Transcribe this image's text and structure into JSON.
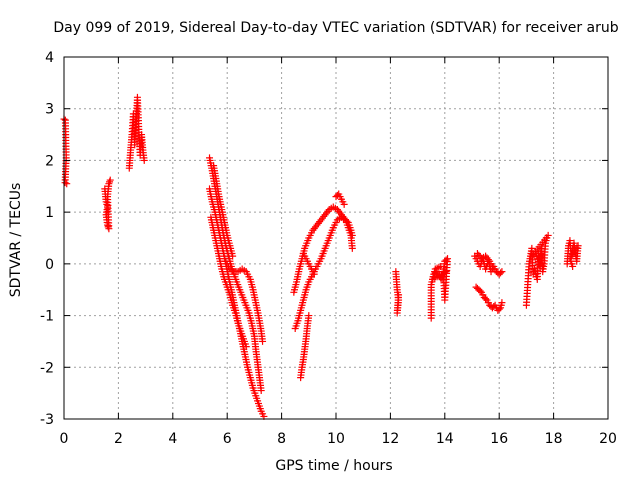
{
  "colors": {
    "series": "#ff0000",
    "grid": "#a0a0a0",
    "axis": "#000000",
    "background": "#ffffff"
  },
  "chart_data": {
    "type": "scatter",
    "title": "Day 099 of 2019, Sidereal Day-to-day VTEC variation (SDTVAR) for receiver arub",
    "xlabel": "GPS time / hours",
    "ylabel": "SDTVAR / TECUs",
    "xlim": [
      0,
      20
    ],
    "ylim": [
      -3,
      4
    ],
    "xticks": [
      "0",
      "2",
      "4",
      "6",
      "8",
      "10",
      "12",
      "14",
      "16",
      "18",
      "20"
    ],
    "yticks": [
      "-3",
      "-2",
      "-1",
      "0",
      "1",
      "2",
      "3",
      "4"
    ],
    "grid": true,
    "marker": "+",
    "series": [
      {
        "name": "SDTVAR",
        "segments": [
          [
            [
              0.0,
              2.8
            ],
            [
              0.05,
              2.78
            ],
            [
              0.08,
              2.05
            ],
            [
              0.04,
              1.57
            ],
            [
              0.1,
              1.55
            ]
          ],
          [
            [
              1.5,
              1.45
            ],
            [
              1.55,
              1.2
            ],
            [
              1.6,
              1.1
            ],
            [
              1.55,
              0.95
            ],
            [
              1.6,
              0.75
            ],
            [
              1.65,
              0.68
            ],
            [
              1.6,
              1.3
            ],
            [
              1.65,
              1.55
            ],
            [
              1.7,
              1.62
            ]
          ],
          [
            [
              2.4,
              1.85
            ],
            [
              2.45,
              2.2
            ],
            [
              2.5,
              2.5
            ],
            [
              2.55,
              2.9
            ],
            [
              2.6,
              2.3
            ],
            [
              2.65,
              2.75
            ],
            [
              2.7,
              3.22
            ],
            [
              2.75,
              2.6
            ],
            [
              2.8,
              2.1
            ],
            [
              2.85,
              2.5
            ],
            [
              2.9,
              2.2
            ],
            [
              2.95,
              2.0
            ]
          ],
          [
            [
              5.35,
              2.05
            ],
            [
              5.45,
              1.8
            ],
            [
              5.55,
              1.5
            ],
            [
              5.65,
              1.2
            ],
            [
              5.75,
              0.9
            ],
            [
              5.85,
              0.6
            ],
            [
              5.95,
              0.35
            ],
            [
              6.05,
              0.15
            ],
            [
              6.15,
              -0.05
            ],
            [
              6.25,
              -0.2
            ],
            [
              6.35,
              -0.35
            ],
            [
              6.5,
              -0.55
            ],
            [
              6.65,
              -0.75
            ],
            [
              6.8,
              -0.95
            ],
            [
              6.9,
              -1.15
            ],
            [
              7.0,
              -1.4
            ],
            [
              7.05,
              -1.65
            ],
            [
              7.1,
              -1.85
            ],
            [
              7.15,
              -2.05
            ],
            [
              7.2,
              -2.25
            ],
            [
              7.25,
              -2.45
            ]
          ],
          [
            [
              5.35,
              1.45
            ],
            [
              5.45,
              1.2
            ],
            [
              5.55,
              1.0
            ],
            [
              5.65,
              0.75
            ],
            [
              5.75,
              0.5
            ],
            [
              5.85,
              0.25
            ],
            [
              5.95,
              0.0
            ],
            [
              6.05,
              -0.25
            ],
            [
              6.15,
              -0.5
            ],
            [
              6.25,
              -0.75
            ],
            [
              6.35,
              -1.0
            ],
            [
              6.45,
              -1.25
            ],
            [
              6.55,
              -1.5
            ],
            [
              6.65,
              -1.75
            ],
            [
              6.75,
              -2.0
            ],
            [
              6.85,
              -2.2
            ],
            [
              6.95,
              -2.4
            ],
            [
              7.05,
              -2.55
            ],
            [
              7.15,
              -2.7
            ],
            [
              7.25,
              -2.85
            ],
            [
              7.35,
              -2.95
            ]
          ],
          [
            [
              5.4,
              0.9
            ],
            [
              5.5,
              0.65
            ],
            [
              5.6,
              0.4
            ],
            [
              5.7,
              0.15
            ],
            [
              5.8,
              -0.1
            ],
            [
              5.9,
              -0.3
            ],
            [
              6.0,
              -0.45
            ],
            [
              6.1,
              -0.6
            ],
            [
              6.2,
              -0.8
            ],
            [
              6.3,
              -0.95
            ],
            [
              6.4,
              -1.15
            ],
            [
              6.5,
              -1.3
            ],
            [
              6.6,
              -1.45
            ],
            [
              6.7,
              -1.6
            ]
          ],
          [
            [
              5.5,
              1.9
            ],
            [
              5.6,
              1.6
            ],
            [
              5.7,
              1.3
            ],
            [
              5.8,
              1.05
            ],
            [
              5.9,
              0.8
            ],
            [
              6.0,
              0.55
            ],
            [
              6.1,
              0.35
            ],
            [
              6.2,
              0.15
            ]
          ],
          [
            [
              5.95,
              0.05
            ],
            [
              6.1,
              -0.1
            ],
            [
              6.25,
              -0.15
            ],
            [
              6.4,
              -0.15
            ],
            [
              6.55,
              -0.1
            ],
            [
              6.7,
              -0.15
            ],
            [
              6.85,
              -0.3
            ],
            [
              6.95,
              -0.5
            ],
            [
              7.05,
              -0.75
            ],
            [
              7.15,
              -1.0
            ],
            [
              7.25,
              -1.3
            ],
            [
              7.3,
              -1.5
            ]
          ],
          [
            [
              8.5,
              -1.25
            ],
            [
              8.6,
              -1.1
            ],
            [
              8.7,
              -0.9
            ],
            [
              8.8,
              -0.7
            ],
            [
              8.9,
              -0.5
            ],
            [
              9.0,
              -0.35
            ],
            [
              9.15,
              -0.2
            ],
            [
              9.3,
              -0.05
            ],
            [
              9.45,
              0.1
            ],
            [
              9.6,
              0.3
            ],
            [
              9.75,
              0.5
            ],
            [
              9.9,
              0.7
            ],
            [
              10.05,
              0.85
            ],
            [
              10.2,
              0.9
            ],
            [
              10.35,
              0.85
            ],
            [
              10.45,
              0.8
            ],
            [
              10.55,
              0.65
            ],
            [
              10.6,
              0.55
            ]
          ],
          [
            [
              8.45,
              -0.55
            ],
            [
              8.55,
              -0.35
            ],
            [
              8.65,
              -0.1
            ],
            [
              8.75,
              0.1
            ],
            [
              8.85,
              0.3
            ],
            [
              9.0,
              0.5
            ],
            [
              9.15,
              0.65
            ],
            [
              9.3,
              0.75
            ],
            [
              9.45,
              0.85
            ],
            [
              9.6,
              0.95
            ],
            [
              9.75,
              1.05
            ],
            [
              9.9,
              1.1
            ],
            [
              10.05,
              1.05
            ],
            [
              10.2,
              0.95
            ],
            [
              10.35,
              0.85
            ],
            [
              10.45,
              0.7
            ],
            [
              10.55,
              0.55
            ],
            [
              10.6,
              0.3
            ]
          ],
          [
            [
              8.7,
              -2.2
            ],
            [
              8.75,
              -2.0
            ],
            [
              8.8,
              -1.85
            ],
            [
              8.85,
              -1.65
            ],
            [
              8.9,
              -1.45
            ],
            [
              8.95,
              -1.2
            ],
            [
              9.0,
              -1.0
            ]
          ],
          [
            [
              10.0,
              1.3
            ],
            [
              10.1,
              1.35
            ],
            [
              10.2,
              1.25
            ],
            [
              10.3,
              1.15
            ]
          ],
          [
            [
              8.8,
              0.2
            ],
            [
              8.9,
              0.1
            ],
            [
              9.0,
              0.0
            ],
            [
              9.1,
              -0.1
            ],
            [
              9.2,
              -0.2
            ]
          ],
          [
            [
              12.2,
              -0.15
            ],
            [
              12.25,
              -0.5
            ],
            [
              12.3,
              -0.7
            ],
            [
              12.25,
              -0.95
            ],
            [
              12.3,
              -0.6
            ]
          ],
          [
            [
              13.5,
              -1.05
            ],
            [
              13.5,
              -0.4
            ],
            [
              13.6,
              -0.2
            ],
            [
              13.7,
              -0.15
            ],
            [
              13.8,
              -0.25
            ],
            [
              13.9,
              -0.3
            ],
            [
              14.0,
              0.05
            ],
            [
              14.1,
              0.1
            ],
            [
              14.0,
              -0.7
            ],
            [
              13.95,
              -0.2
            ],
            [
              14.05,
              -0.15
            ],
            [
              13.55,
              -0.3
            ],
            [
              13.65,
              -0.1
            ],
            [
              13.85,
              -0.05
            ]
          ],
          [
            [
              15.1,
              0.15
            ],
            [
              15.2,
              0.05
            ],
            [
              15.3,
              -0.05
            ],
            [
              15.4,
              0.1
            ],
            [
              15.5,
              -0.1
            ],
            [
              15.6,
              0.05
            ],
            [
              15.7,
              -0.15
            ],
            [
              15.8,
              -0.05
            ],
            [
              15.9,
              -0.15
            ],
            [
              16.0,
              -0.2
            ],
            [
              16.1,
              -0.15
            ]
          ],
          [
            [
              15.15,
              -0.45
            ],
            [
              15.25,
              -0.5
            ],
            [
              15.35,
              -0.55
            ],
            [
              15.45,
              -0.65
            ],
            [
              15.55,
              -0.7
            ],
            [
              15.65,
              -0.8
            ],
            [
              15.75,
              -0.85
            ],
            [
              15.85,
              -0.8
            ],
            [
              15.95,
              -0.9
            ],
            [
              16.05,
              -0.85
            ],
            [
              16.1,
              -0.75
            ]
          ],
          [
            [
              15.2,
              0.2
            ],
            [
              15.35,
              0.1
            ],
            [
              15.5,
              0.15
            ],
            [
              15.65,
              0.05
            ],
            [
              15.8,
              -0.1
            ]
          ],
          [
            [
              17.0,
              -0.8
            ],
            [
              17.1,
              0.0
            ],
            [
              17.2,
              0.3
            ],
            [
              17.25,
              -0.2
            ],
            [
              17.3,
              -0.1
            ],
            [
              17.4,
              -0.3
            ],
            [
              17.45,
              0.2
            ],
            [
              17.5,
              0.1
            ],
            [
              17.55,
              0.3
            ],
            [
              17.6,
              -0.15
            ],
            [
              17.65,
              0.0
            ],
            [
              17.7,
              0.4
            ],
            [
              17.75,
              0.5
            ],
            [
              17.8,
              0.55
            ],
            [
              17.2,
              0.15
            ],
            [
              17.35,
              0.2
            ],
            [
              17.5,
              -0.05
            ]
          ],
          [
            [
              18.5,
              0.0
            ],
            [
              18.55,
              0.35
            ],
            [
              18.6,
              0.45
            ],
            [
              18.65,
              0.15
            ],
            [
              18.7,
              0.3
            ],
            [
              18.75,
              0.4
            ],
            [
              18.8,
              0.2
            ],
            [
              18.85,
              0.05
            ],
            [
              18.9,
              0.35
            ],
            [
              18.6,
              0.1
            ],
            [
              18.7,
              -0.05
            ]
          ]
        ]
      }
    ]
  }
}
